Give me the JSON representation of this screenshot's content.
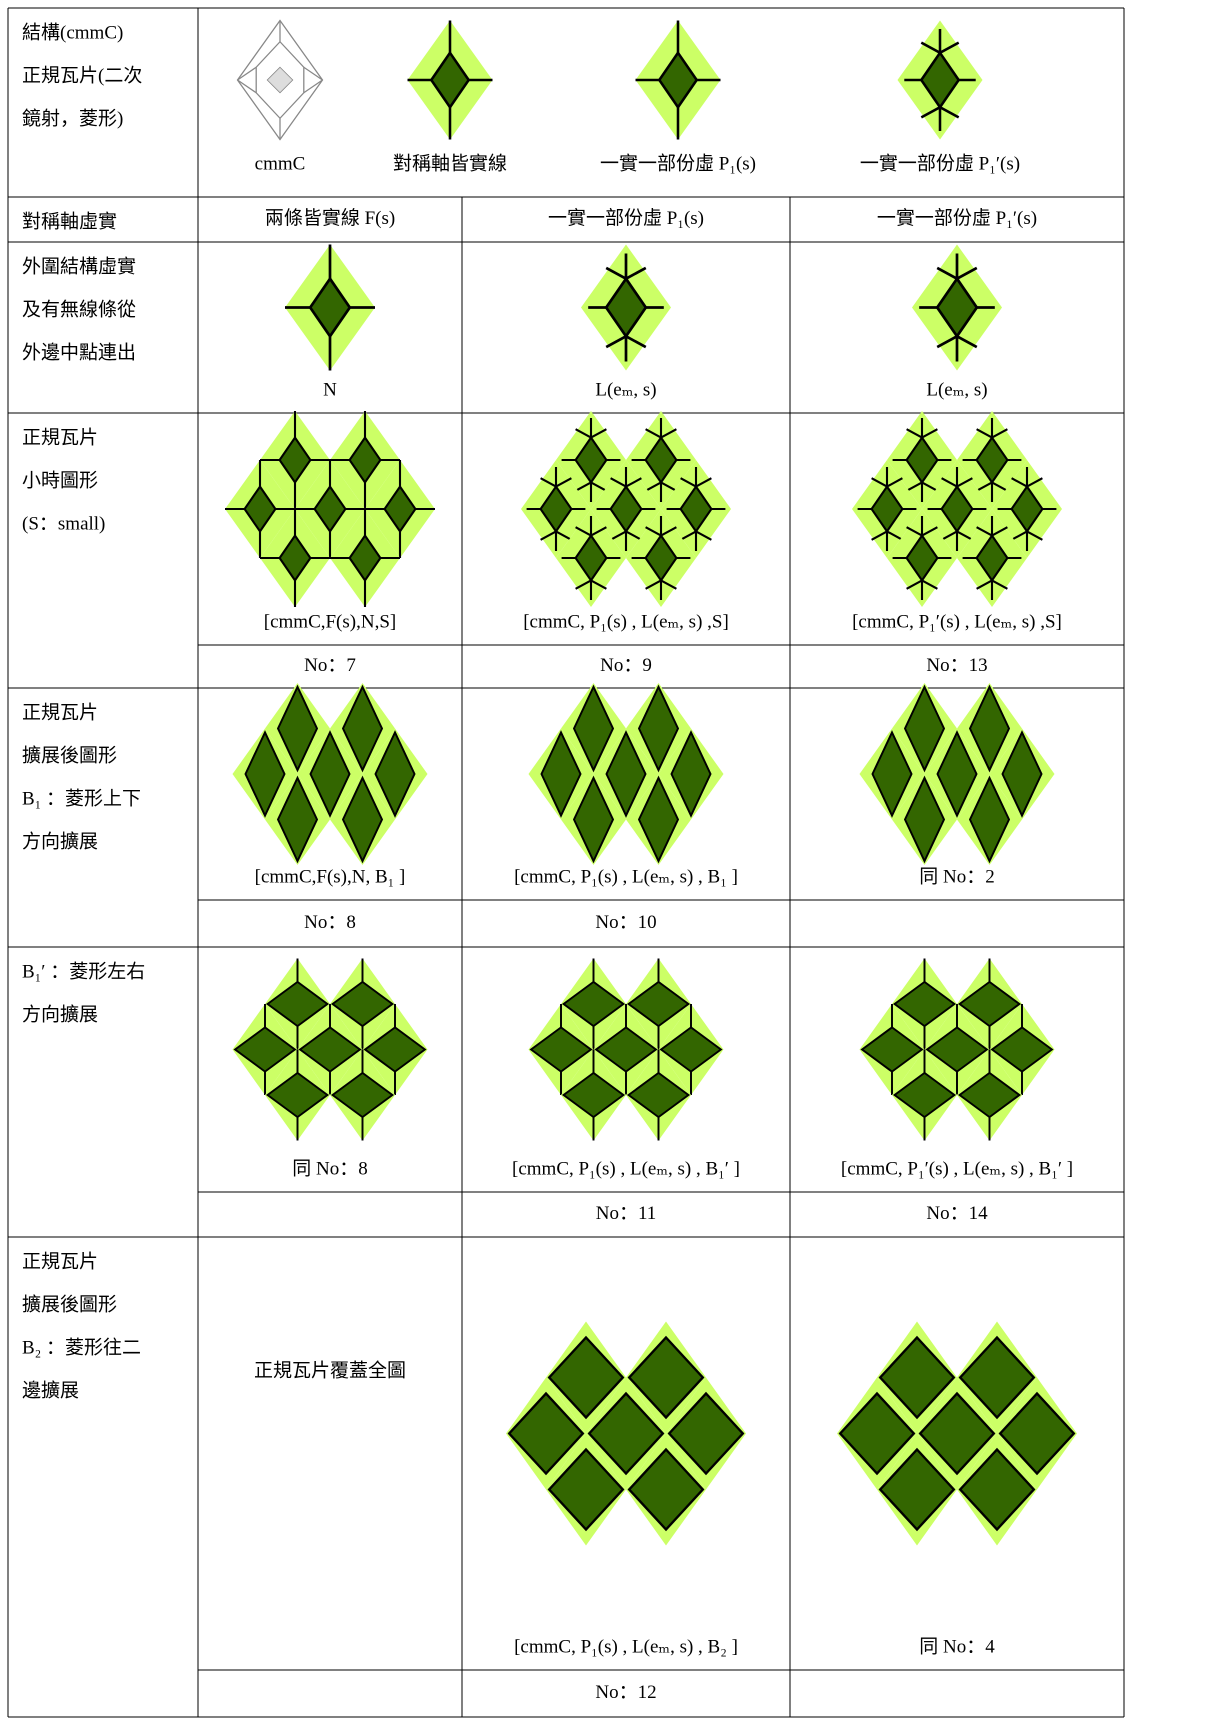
{
  "table": {
    "rows": [
      {
        "label": [
          "結構(cmmC)",
          "正規瓦片(二次",
          "鏡射，菱形)"
        ],
        "cells": [
          "cmmC",
          "對稱軸皆實線",
          "一實一部份虛 P₁(s)",
          "一實一部份虛 P₁′(s)"
        ]
      },
      {
        "label": [
          "對稱軸虛實"
        ],
        "cells": [
          "兩條皆實線 F(s)",
          "一實一部份虛 P₁(s)",
          "一實一部份虛 P₁′(s)"
        ]
      },
      {
        "label": [
          "外圍結構虛實",
          "及有無線條從",
          "外邊中點連出"
        ],
        "cells": [
          "N",
          "L(eₘ, s)",
          "L(eₘ, s)"
        ]
      },
      {
        "label": [
          "正規瓦片",
          "小時圖形",
          "(S：small)"
        ],
        "cells": [
          "[cmmC,F(s),N,S]",
          "[cmmC, P₁(s) , L(eₘ, s) ,S]",
          "[cmmC, P₁′(s) , L(eₘ, s) ,S]"
        ],
        "nos": [
          "No：7",
          "No：9",
          "No：13"
        ]
      },
      {
        "label": [
          "正規瓦片",
          "擴展後圖形",
          "B₁ ：菱形上下",
          "方向擴展"
        ],
        "cells": [
          "[cmmC,F(s),N, B₁ ]",
          "[cmmC, P₁(s) , L(eₘ, s) , B₁ ]",
          "同 No：2"
        ],
        "nos": [
          "No：8",
          "No：10",
          null
        ]
      },
      {
        "label": [
          "B₁′ ：菱形左右",
          "方向擴展"
        ],
        "cells": [
          "同 No：8",
          "[cmmC, P₁(s) , L(eₘ, s) , B₁′ ]",
          "[cmmC, P₁′(s) , L(eₘ, s) , B₁′ ]"
        ],
        "nos": [
          null,
          "No：11",
          "No：14"
        ]
      },
      {
        "label": [
          "正規瓦片",
          "擴展後圖形",
          "B₂ ：菱形往二",
          "邊擴展"
        ],
        "cells": [
          "正規瓦片覆蓋全圖",
          "[cmmC, P₁(s) , L(eₘ, s) , B₂ ]",
          "同 No：4"
        ],
        "nos": [
          null,
          "No：12",
          null
        ]
      }
    ]
  }
}
